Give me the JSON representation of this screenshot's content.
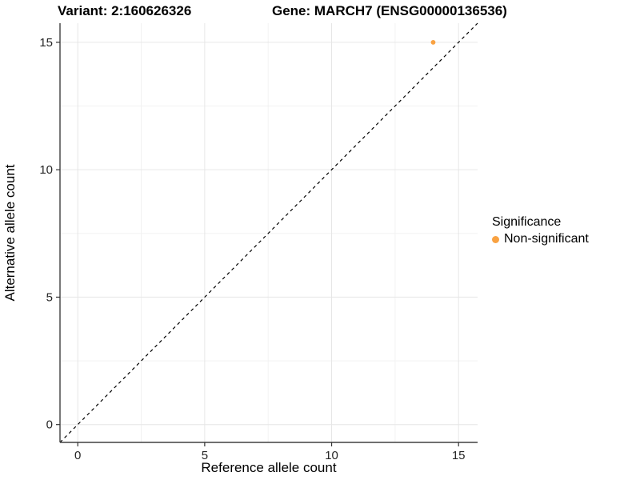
{
  "titles": {
    "variant": "Variant: 2:160626326",
    "gene": "Gene: MARCH7 (ENSG00000136536)"
  },
  "legend": {
    "title": "Significance",
    "items": [
      {
        "label": "Non-significant",
        "color": "#F9A242"
      }
    ]
  },
  "chart_data": {
    "type": "scatter",
    "title": "",
    "xlabel": "Reference allele count",
    "ylabel": "Alternative allele count",
    "xlim": [
      -0.7,
      15.75
    ],
    "ylim": [
      -0.7,
      15.75
    ],
    "x_ticks": [
      0,
      5,
      10,
      15
    ],
    "y_ticks": [
      0,
      5,
      10,
      15
    ],
    "x_minor_ticks": [
      2.5,
      7.5,
      12.5
    ],
    "y_minor_ticks": [
      2.5,
      7.5,
      12.5
    ],
    "grid": true,
    "legend_position": "right",
    "series": [
      {
        "name": "Non-significant",
        "color": "#F9A242",
        "points": [
          {
            "x": 14,
            "y": 15
          }
        ]
      }
    ],
    "reference_line": {
      "type": "identity",
      "style": "dashed",
      "color": "#000000"
    }
  },
  "colors": {
    "background": "#ffffff",
    "grid_major": "#E6E6E6",
    "grid_minor": "#F2F2F2",
    "axis": "#404040",
    "tick": "#333333",
    "tick_text": "#262626",
    "point": "#F9A242",
    "reference_line": "#000000"
  }
}
